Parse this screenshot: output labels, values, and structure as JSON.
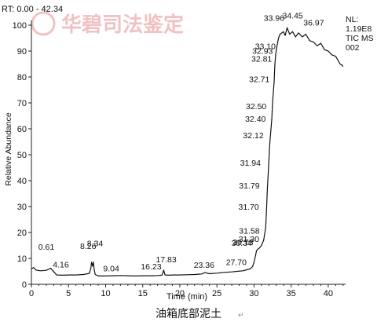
{
  "chart_data": {
    "type": "line",
    "title": "RT: 0.00 - 42.34",
    "xlabel": "Time (min)",
    "ylabel": "Relative Abundance",
    "xlim": [
      0,
      42.34
    ],
    "ylim": [
      0,
      100
    ],
    "xticks": [
      0,
      5,
      10,
      15,
      20,
      25,
      30,
      35,
      40
    ],
    "yticks": [
      0,
      10,
      20,
      30,
      40,
      50,
      60,
      70,
      80,
      90,
      100
    ],
    "grid": false,
    "info_box": [
      "NL:",
      "1.19E8",
      "TIC  MS",
      "002"
    ],
    "series": [
      {
        "x": [
          0,
          0.3,
          0.61,
          1.2,
          2,
          2.6,
          2.9,
          3.4,
          4.16,
          5,
          6,
          7,
          7.8,
          8.0,
          8.1,
          8.26,
          8.34,
          8.45,
          8.6,
          9.04,
          10,
          11,
          12,
          13,
          14,
          15,
          16.23,
          17,
          17.6,
          17.83,
          18.0,
          18.6,
          19,
          20,
          21,
          22,
          23,
          23.36,
          24,
          25,
          26,
          27,
          27.7,
          28.5,
          29,
          29.5,
          29.8,
          30.0,
          30.2,
          30.34,
          30.5,
          30.73,
          31.0,
          31.3,
          31.58,
          31.7,
          31.79,
          31.94,
          32.12,
          32.4,
          32.5,
          32.71,
          32.81,
          32.93,
          33.1,
          33.3,
          33.5,
          33.96,
          34.2,
          34.45,
          34.8,
          35.2,
          35.6,
          36.0,
          36.5,
          36.97,
          37.5,
          38.0,
          38.5,
          39.0,
          39.5,
          40.0,
          40.5,
          41.0,
          41.3,
          41.6,
          41.9,
          42.0
        ],
        "y": [
          6,
          6.5,
          5.5,
          5.2,
          5.4,
          6.2,
          5.2,
          3.6,
          3.5,
          3.6,
          3.6,
          3.8,
          4.2,
          6.0,
          8.5,
          7.0,
          8.6,
          6.0,
          3.8,
          3.2,
          3.2,
          3.3,
          3.4,
          3.3,
          3.2,
          3.3,
          3.3,
          3.4,
          3.5,
          5.5,
          3.6,
          3.5,
          3.6,
          3.6,
          3.7,
          3.8,
          4.0,
          4.5,
          4.1,
          4.3,
          4.6,
          4.8,
          5.0,
          5.2,
          5.6,
          6.0,
          6.8,
          8.5,
          11.0,
          13.0,
          13.5,
          14.0,
          15.0,
          17.0,
          22.0,
          30.0,
          36.0,
          44.0,
          54.0,
          64.0,
          70.0,
          78.0,
          85.0,
          89.0,
          92.0,
          95.0,
          96.5,
          97.5,
          96.0,
          99.0,
          96.5,
          97.5,
          95.5,
          97.0,
          95.5,
          96.5,
          94.0,
          93.5,
          92.0,
          93.0,
          90.5,
          90.0,
          88.5,
          88.0,
          86.5,
          85.0,
          84.5,
          84.0
        ]
      }
    ],
    "peak_labels": [
      {
        "text": "0.61",
        "x": 0.61,
        "y": 5.5
      },
      {
        "text": "4.16",
        "x": 4.16,
        "y": 3.5
      },
      {
        "text": "8.26",
        "x": 8.26,
        "y": 7.0
      },
      {
        "text": "8.34",
        "x": 8.34,
        "y": 8.6
      },
      {
        "text": "9.04",
        "x": 9.04,
        "y": 3.2
      },
      {
        "text": "16.23",
        "x": 16.23,
        "y": 3.3
      },
      {
        "text": "17.83",
        "x": 17.83,
        "y": 5.5
      },
      {
        "text": "23.36",
        "x": 23.36,
        "y": 4.5
      },
      {
        "text": "27.70",
        "x": 27.7,
        "y": 5.0
      },
      {
        "text": "30.34",
        "x": 30.34,
        "y": 13.0
      },
      {
        "text": "30.73",
        "x": 30.73,
        "y": 14.0
      },
      {
        "text": "31.30",
        "x": 31.3,
        "y": 17.0
      },
      {
        "text": "31.58",
        "x": 31.58,
        "y": 22.0
      },
      {
        "text": "31.70",
        "x": 31.7,
        "y": 30.0
      },
      {
        "text": "31.79",
        "x": 31.79,
        "y": 36.0
      },
      {
        "text": "31.94",
        "x": 31.94,
        "y": 44.0
      },
      {
        "text": "32.12",
        "x": 32.12,
        "y": 54.0
      },
      {
        "text": "32.40",
        "x": 32.4,
        "y": 64.0
      },
      {
        "text": "32.50",
        "x": 32.5,
        "y": 70.0
      },
      {
        "text": "32.71",
        "x": 32.71,
        "y": 78.0
      },
      {
        "text": "32.81",
        "x": 32.81,
        "y": 85.0
      },
      {
        "text": "32.93",
        "x": 32.93,
        "y": 89.0
      },
      {
        "text": "33.10",
        "x": 33.1,
        "y": 92.0
      },
      {
        "text": "33.96",
        "x": 33.96,
        "y": 97.5
      },
      {
        "text": "34.45",
        "x": 34.45,
        "y": 99.0
      },
      {
        "text": "36.97",
        "x": 36.97,
        "y": 96.5
      }
    ]
  },
  "watermark": {
    "text": "华碧司法鉴定"
  },
  "caption": "油箱底部泥土"
}
